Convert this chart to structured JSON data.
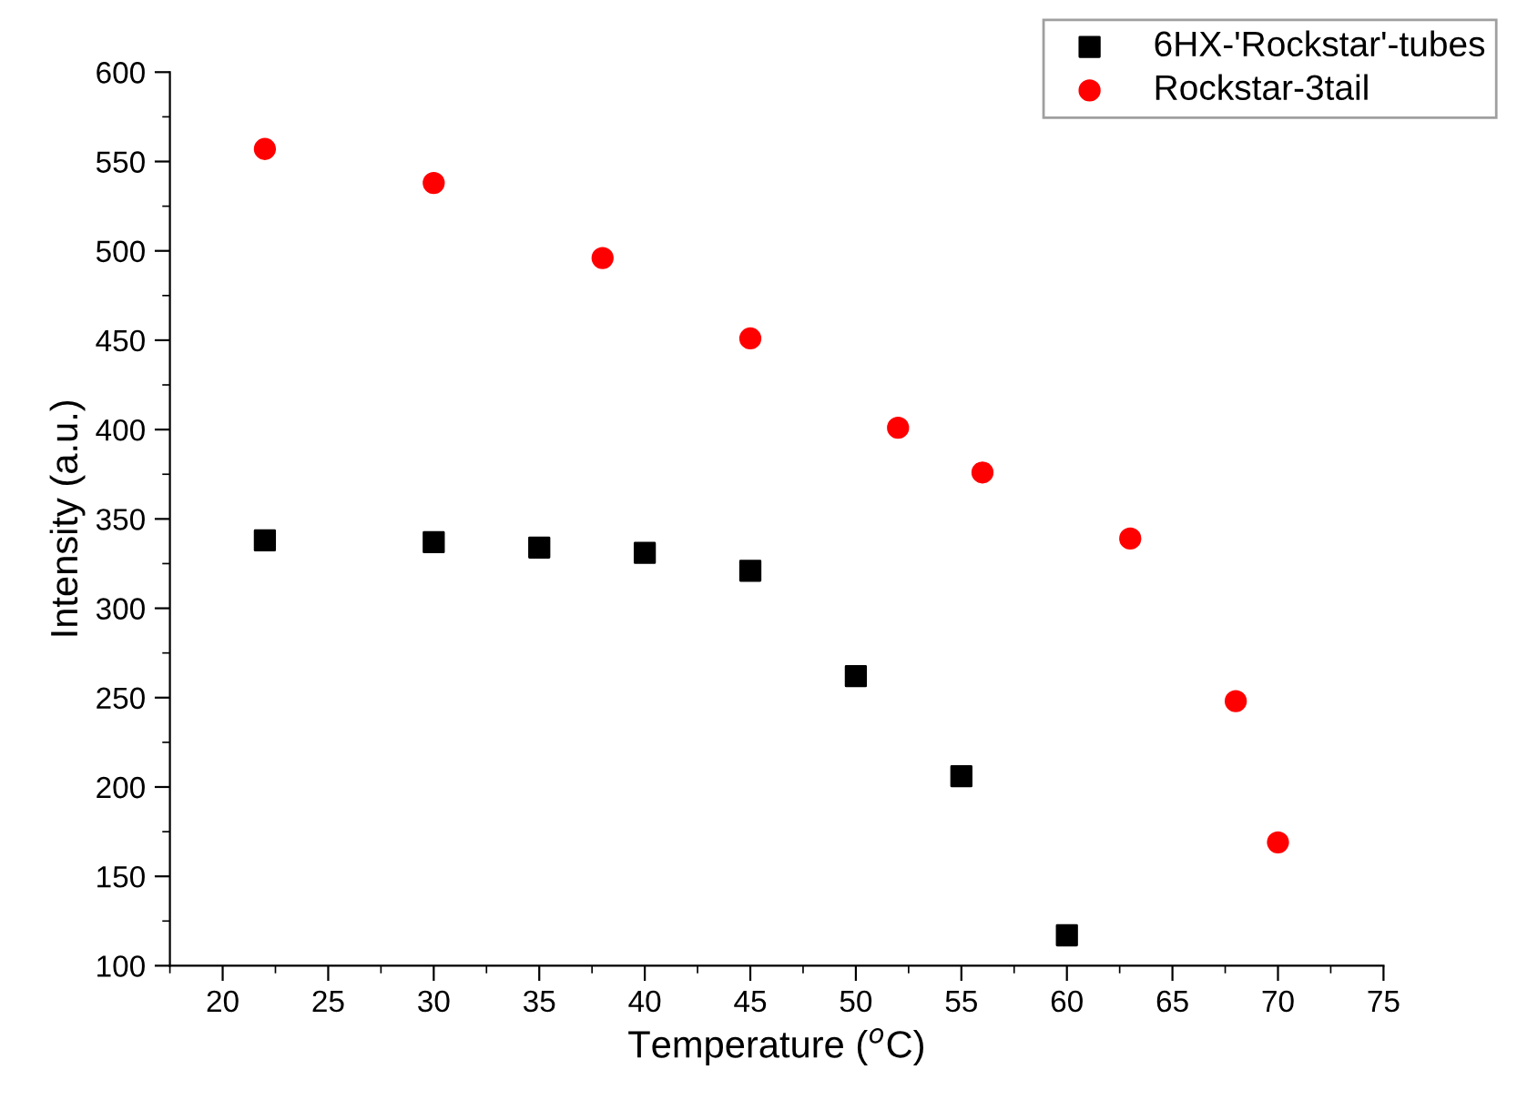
{
  "chart_data": {
    "type": "scatter",
    "xlabel": "Temperature ($^{o}$C)",
    "ylabel": "Intensity (a.u.)",
    "xlim": [
      17.5,
      75
    ],
    "xticks": [
      20,
      25,
      30,
      35,
      40,
      45,
      50,
      55,
      60,
      65,
      70,
      75
    ],
    "ylim": [
      100,
      600
    ],
    "yticks": [
      100,
      150,
      200,
      250,
      300,
      350,
      400,
      450,
      500,
      550,
      600
    ],
    "legend": "top right",
    "grid": false,
    "series": [
      {
        "name": "6HX-'Rockstar'-tubes",
        "color": "#000000",
        "marker": "square",
        "x": [
          22,
          30,
          35,
          40,
          45,
          50,
          55,
          60
        ],
        "values": [
          338,
          337,
          334,
          331,
          321,
          262,
          206,
          117
        ]
      },
      {
        "name": "Rockstar-3tail",
        "color": "#ff0000",
        "marker": "circle",
        "x": [
          22,
          30,
          38,
          45,
          52,
          56,
          63,
          68,
          70
        ],
        "values": [
          557,
          538,
          496,
          451,
          401,
          376,
          339,
          248,
          169
        ]
      }
    ]
  }
}
